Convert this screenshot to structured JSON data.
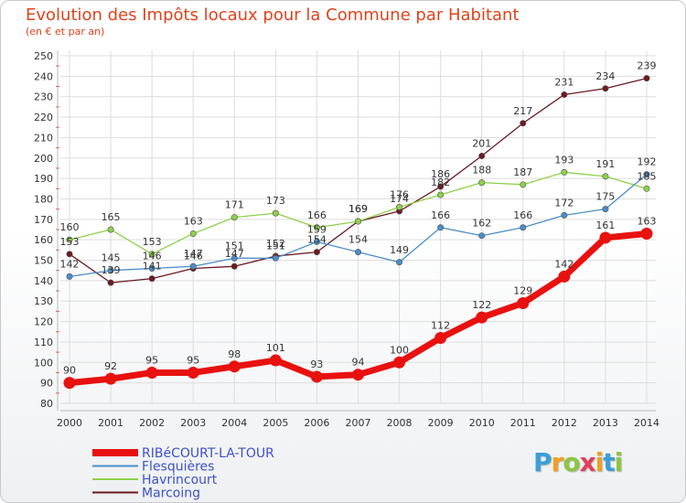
{
  "header": {
    "title": "Evolution des Impôts locaux pour la Commune par Habitant",
    "subtitle": "(en € et par an)"
  },
  "logo": {
    "text": "Proxiti"
  },
  "chart_data": {
    "type": "line",
    "title": "Evolution des Impôts locaux pour la Commune par Habitant",
    "subtitle": "(en € et par an)",
    "xlabel": "",
    "ylabel": "",
    "x": [
      "2000",
      "2001",
      "2002",
      "2003",
      "2004",
      "2005",
      "2006",
      "2007",
      "2008",
      "2009",
      "2010",
      "2011",
      "2012",
      "2013",
      "2014"
    ],
    "ylim": [
      80,
      250
    ],
    "yticks": [
      80,
      90,
      100,
      110,
      120,
      130,
      140,
      150,
      160,
      170,
      180,
      190,
      200,
      210,
      220,
      230,
      240,
      250
    ],
    "grid": true,
    "legend_position": "bottom-left",
    "series": [
      {
        "name": "RIBéCOURT-LA-TOUR",
        "color": "#e8110f",
        "values": [
          90,
          92,
          95,
          95,
          98,
          101,
          93,
          94,
          100,
          112,
          122,
          129,
          142,
          161,
          163
        ]
      },
      {
        "name": "Flesquières",
        "color": "#4a8ec8",
        "values": [
          142,
          145,
          146,
          147,
          151,
          151,
          159,
          154,
          149,
          166,
          162,
          166,
          172,
          175,
          192
        ]
      },
      {
        "name": "Havrincourt",
        "color": "#8fd04a",
        "values": [
          160,
          165,
          153,
          163,
          171,
          173,
          166,
          169,
          176,
          182,
          188,
          187,
          193,
          191,
          185
        ]
      },
      {
        "name": "Marcoing",
        "color": "#6b1a22",
        "values": [
          153,
          139,
          141,
          146,
          147,
          152,
          154,
          169,
          174,
          186,
          201,
          217,
          231,
          234,
          239
        ]
      }
    ]
  }
}
